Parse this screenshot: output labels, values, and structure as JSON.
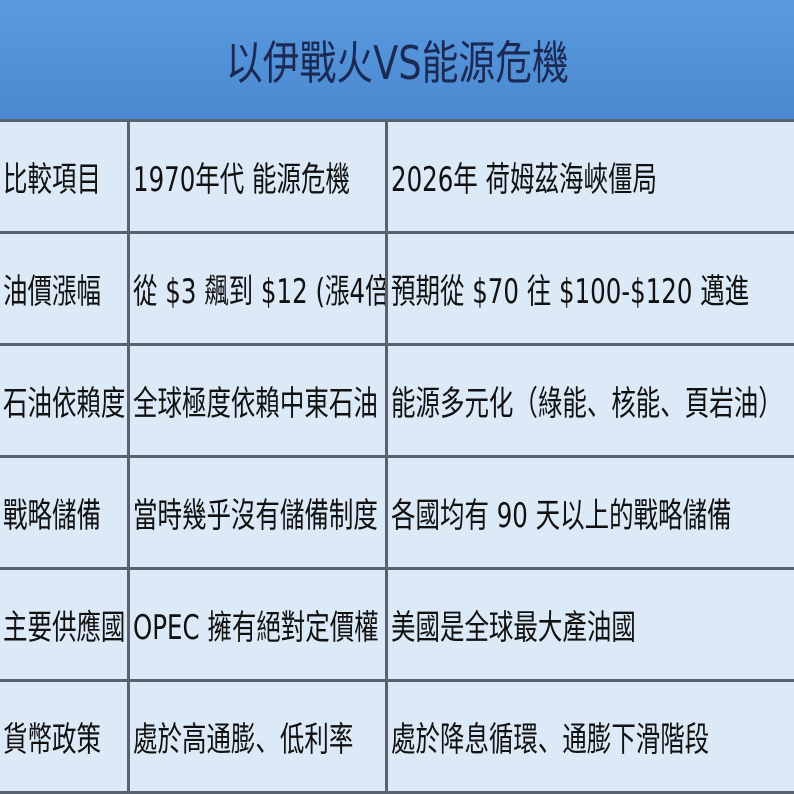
{
  "title": "以伊戰火VS能源危機",
  "table": {
    "header": [
      "比較項目",
      "1970年代 能源危機",
      "2026年 荷姆茲海峽僵局"
    ],
    "rows": [
      [
        "油價漲幅",
        "從 $3 飆到 $12 (漲4倍)",
        "預期從 $70 往 $100-$120 邁進"
      ],
      [
        "石油依賴度",
        "全球極度依賴中東石油",
        "能源多元化（綠能、核能、頁岩油）"
      ],
      [
        "戰略儲備",
        "當時幾乎沒有儲備制度",
        "各國均有 90 天以上的戰略儲備"
      ],
      [
        "主要供應國",
        "OPEC 擁有絕對定價權",
        "美國是全球最大產油國"
      ],
      [
        "貨幣政策",
        "處於高通膨、低利率",
        "處於降息循環、通膨下滑階段"
      ]
    ]
  }
}
